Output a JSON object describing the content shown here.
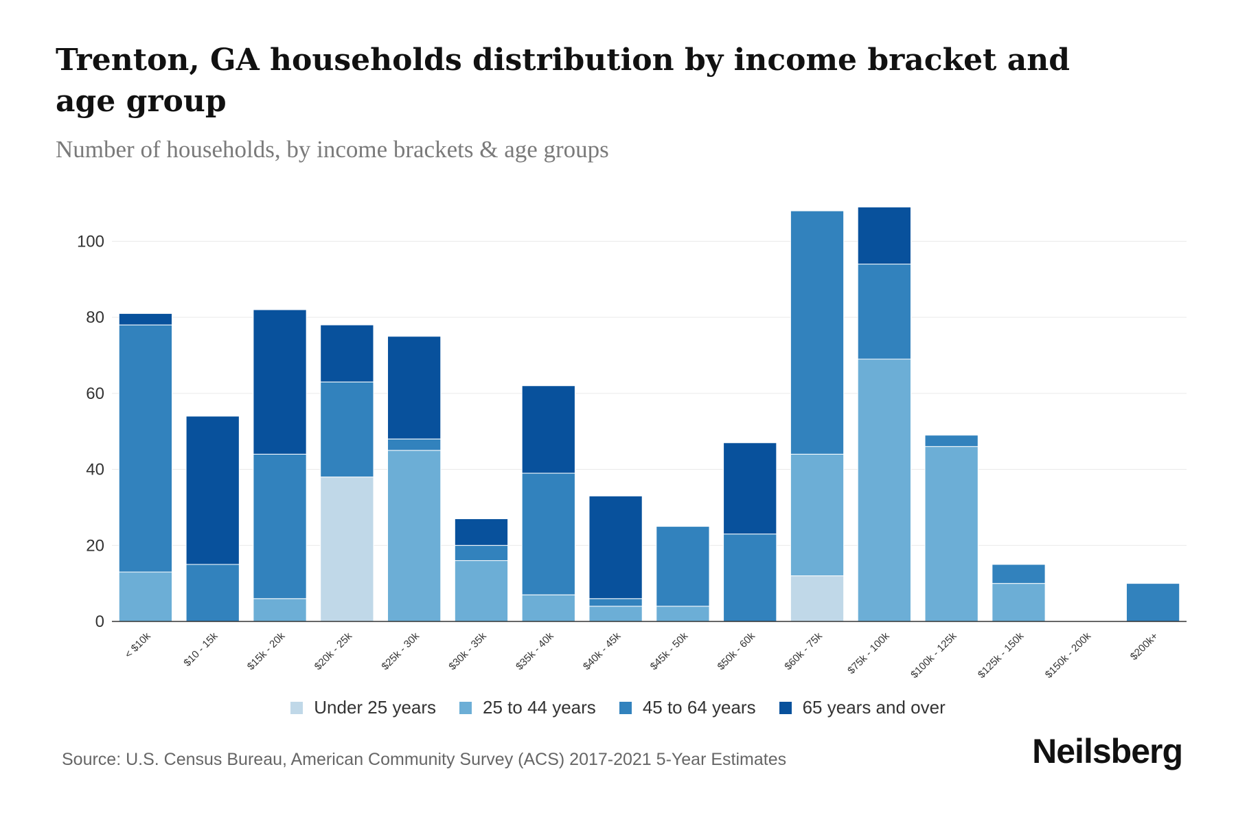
{
  "chart_data": {
    "type": "bar",
    "stacked": true,
    "title": "Trenton, GA households distribution by income bracket and age group",
    "subtitle": "Number of households, by income brackets & age groups",
    "ylabel": "",
    "xlabel": "",
    "ylim": [
      0,
      110
    ],
    "yticks": [
      0,
      20,
      40,
      60,
      80,
      100
    ],
    "grid": true,
    "legend_position": "bottom",
    "categories": [
      "< $10k",
      "$10 - 15k",
      "$15k - 20k",
      "$20k - 25k",
      "$25k - 30k",
      "$30k - 35k",
      "$35k - 40k",
      "$40k - 45k",
      "$45k - 50k",
      "$50k - 60k",
      "$60k - 75k",
      "$75k - 100k",
      "$100k - 125k",
      "$125k - 150k",
      "$150k - 200k",
      "$200k+"
    ],
    "series": [
      {
        "name": "Under 25 years",
        "color": "#c0d8e8",
        "values": [
          0,
          0,
          0,
          38,
          0,
          0,
          0,
          0,
          0,
          0,
          12,
          0,
          0,
          0,
          0,
          0
        ]
      },
      {
        "name": "25 to 44 years",
        "color": "#6caed6",
        "values": [
          13,
          0,
          6,
          0,
          45,
          16,
          7,
          4,
          4,
          0,
          32,
          69,
          46,
          10,
          0,
          0
        ]
      },
      {
        "name": "45 to 64 years",
        "color": "#3282bd",
        "values": [
          65,
          15,
          38,
          25,
          3,
          4,
          32,
          2,
          21,
          23,
          64,
          25,
          3,
          5,
          0,
          10
        ]
      },
      {
        "name": "65 years and over",
        "color": "#08519c",
        "values": [
          3,
          39,
          38,
          15,
          27,
          7,
          23,
          27,
          0,
          24,
          0,
          15,
          0,
          0,
          0,
          0
        ]
      }
    ]
  },
  "source": "Source: U.S. Census Bureau, American Community Survey (ACS) 2017-2021 5-Year Estimates",
  "brand": "Neilsberg"
}
